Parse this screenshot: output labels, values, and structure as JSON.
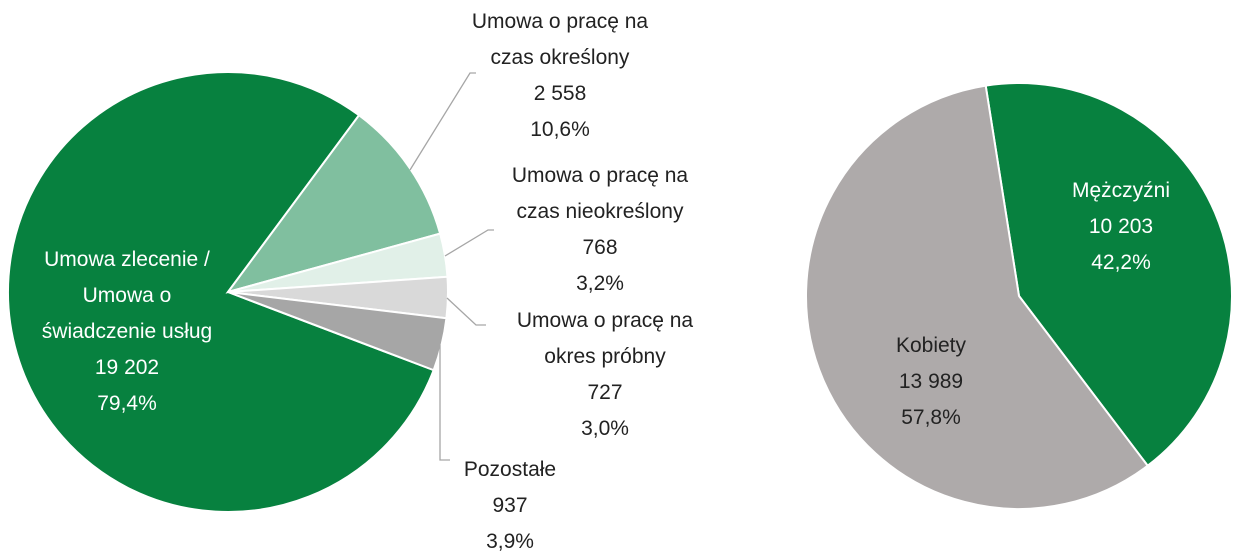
{
  "chart_data": [
    {
      "type": "pie",
      "categories": [
        "Umowa zlecenie / Umowa o świadczenie usług",
        "Umowa o pracę na czas określony",
        "Umowa o pracę na czas nieokreślony",
        "Umowa o pracę na okres próbny",
        "Pozostałe"
      ],
      "values": [
        19202,
        2558,
        768,
        727,
        937
      ],
      "value_labels": [
        "19 202",
        "2 558",
        "768",
        "727",
        "937"
      ],
      "percentages": [
        79.4,
        10.6,
        3.2,
        3.0,
        3.9
      ],
      "percentage_labels": [
        "79,4%",
        "10,6%",
        "3,2%",
        "3,0%",
        "3,9%"
      ],
      "colors": [
        "#07813f",
        "#80bf9f",
        "#e1f0e8",
        "#d9d9d9",
        "#a6a6a6"
      ]
    },
    {
      "type": "pie",
      "categories": [
        "Mężczyźni",
        "Kobiety"
      ],
      "values": [
        10203,
        13989
      ],
      "value_labels": [
        "10 203",
        "13 989"
      ],
      "percentages": [
        42.2,
        57.8
      ],
      "percentage_labels": [
        "42,2%",
        "57,8%"
      ],
      "colors": [
        "#07813f",
        "#aeaaaa"
      ]
    }
  ]
}
